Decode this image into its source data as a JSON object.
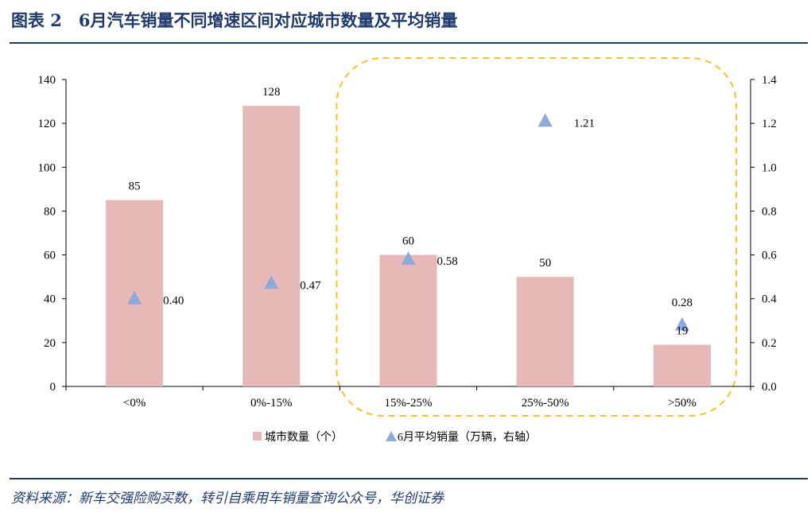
{
  "title": "图表 2　6月汽车销量不同增速区间对应城市数量及平均销量",
  "source": "资料来源：新车交强险购买数，转引自乘用车销量查询公众号，华创证券",
  "colors": {
    "bar": "#e6b8b7",
    "marker": "#8ea9db",
    "title": "#1f3a6b",
    "highlight": "#f2c12e"
  },
  "chart_data": {
    "type": "bar",
    "categories": [
      "<0%",
      "0%-15%",
      "15%-25%",
      "25%-50%",
      ">50%"
    ],
    "series": [
      {
        "name": "城市数量（个）",
        "type": "bar",
        "axis": "left",
        "values": [
          85,
          128,
          60,
          50,
          19
        ],
        "labels": [
          "85",
          "128",
          "60",
          "50",
          "19"
        ]
      },
      {
        "name": "6月平均销量（万辆，右轴）",
        "type": "scatter",
        "marker": "triangle",
        "axis": "right",
        "values": [
          0.4,
          0.47,
          0.58,
          1.21,
          0.28
        ],
        "labels": [
          "0.40",
          "0.47",
          "0.58",
          "1.21",
          "0.28"
        ]
      }
    ],
    "ylim": [
      0,
      140
    ],
    "yticks": [
      "0",
      "20",
      "40",
      "60",
      "80",
      "100",
      "120",
      "140"
    ],
    "y2lim": [
      0,
      1.4
    ],
    "y2ticks": [
      "0.0",
      "0.2",
      "0.4",
      "0.6",
      "0.8",
      "1.0",
      "1.2",
      "1.4"
    ],
    "legend_position": "bottom",
    "highlight": {
      "style": "dashed rounded rectangle",
      "categories": [
        "15%-25%",
        "25%-50%",
        ">50%"
      ]
    }
  }
}
